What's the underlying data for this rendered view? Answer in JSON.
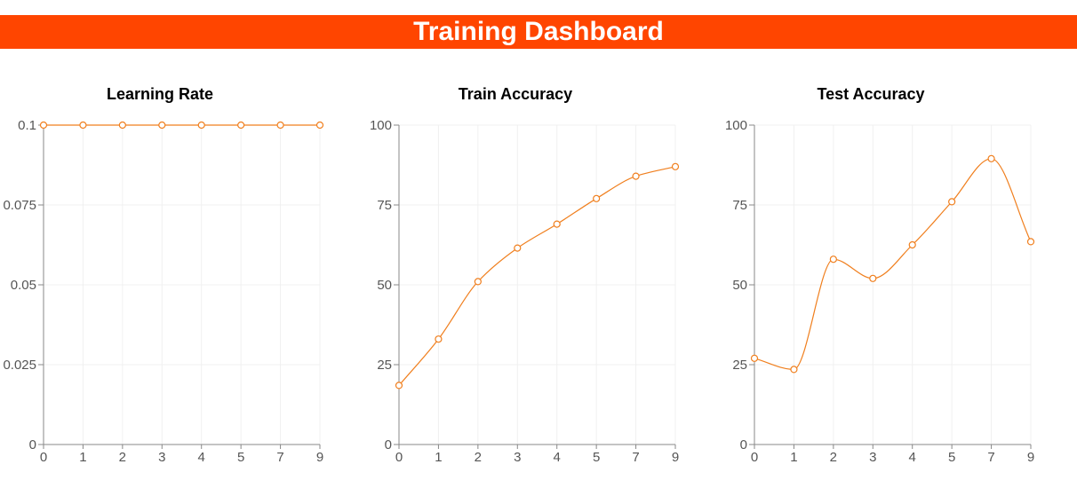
{
  "header": {
    "title": "Training Dashboard"
  },
  "colors": {
    "banner": "#ff4500",
    "line": "#f07f1e",
    "axis": "#888888",
    "grid": "#f0f0f0",
    "tick_text": "#555555"
  },
  "chart_data": [
    {
      "type": "line",
      "title": "Learning Rate",
      "x": [
        "0",
        "1",
        "2",
        "3",
        "4",
        "5",
        "7",
        "9"
      ],
      "values": [
        0.1,
        0.1,
        0.1,
        0.1,
        0.1,
        0.1,
        0.1,
        0.1
      ],
      "ylim": [
        0,
        0.1
      ],
      "yticks": [
        0,
        0.025,
        0.05,
        0.075,
        0.1
      ],
      "yticklabels": [
        "0",
        "0.025",
        "0.05",
        "0.075",
        "0.1"
      ],
      "grid": true,
      "curve": "smooth"
    },
    {
      "type": "line",
      "title": "Train Accuracy",
      "x": [
        "0",
        "1",
        "2",
        "3",
        "4",
        "5",
        "7",
        "9"
      ],
      "values": [
        18.5,
        33,
        51,
        61.5,
        69,
        77,
        84,
        87
      ],
      "ylim": [
        0,
        100
      ],
      "yticks": [
        0,
        25,
        50,
        75,
        100
      ],
      "yticklabels": [
        "0",
        "25",
        "50",
        "75",
        "100"
      ],
      "grid": true,
      "curve": "smooth"
    },
    {
      "type": "line",
      "title": "Test Accuracy",
      "x": [
        "0",
        "1",
        "2",
        "3",
        "4",
        "5",
        "7",
        "9"
      ],
      "values": [
        27,
        23.5,
        58,
        52,
        62.5,
        76,
        89.5,
        63.5
      ],
      "ylim": [
        0,
        100
      ],
      "yticks": [
        0,
        25,
        50,
        75,
        100
      ],
      "yticklabels": [
        "0",
        "25",
        "50",
        "75",
        "100"
      ],
      "grid": true,
      "curve": "smooth"
    }
  ]
}
